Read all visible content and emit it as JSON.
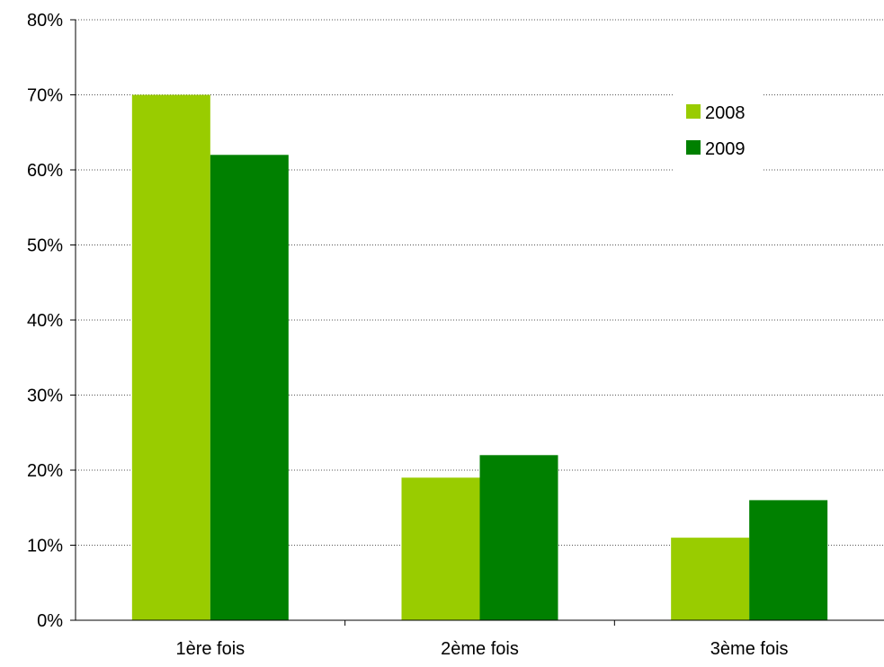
{
  "chart_data": {
    "type": "bar",
    "categories": [
      "1ère fois",
      "2ème fois",
      "3ème fois"
    ],
    "series": [
      {
        "name": "2008",
        "values": [
          70,
          19,
          11
        ],
        "color": "#99cc00"
      },
      {
        "name": "2009",
        "values": [
          62,
          22,
          16
        ],
        "color": "#008000"
      }
    ],
    "ylim": [
      0,
      80
    ],
    "y_ticks": [
      0,
      10,
      20,
      30,
      40,
      50,
      60,
      70,
      80
    ],
    "y_tick_labels": [
      "0%",
      "10%",
      "20%",
      "30%",
      "40%",
      "50%",
      "60%",
      "70%",
      "80%"
    ],
    "grid": true,
    "grid_style": "dotted",
    "legend_position": "top-right",
    "title": "",
    "xlabel": "",
    "ylabel": ""
  }
}
